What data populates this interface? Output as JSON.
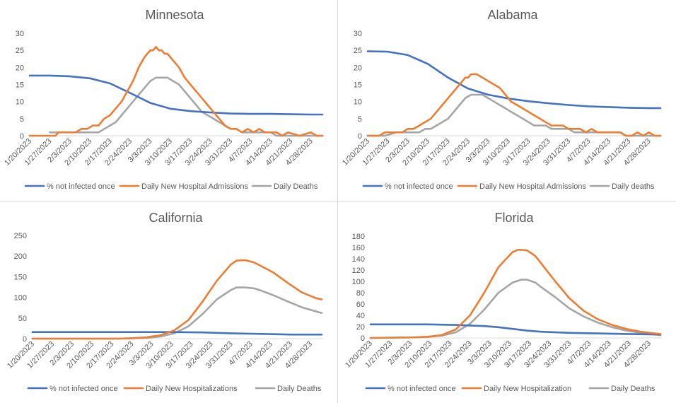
{
  "chart_data": [
    {
      "type": "line",
      "title": "Minnesota",
      "x_start": "1/20/2023",
      "tick_labels": [
        "1/20/2023",
        "1/27/2023",
        "2/3/2023",
        "2/10/2023",
        "2/17/2023",
        "2/24/2023",
        "3/3/2023",
        "3/10/2023",
        "3/17/2023",
        "3/24/2023",
        "3/31/2023",
        "4/7/2023",
        "4/14/2023",
        "4/21/2023",
        "4/28/2023"
      ],
      "ylim": [
        0,
        30
      ],
      "yticks": [
        0,
        5,
        10,
        15,
        20,
        25,
        30
      ],
      "grid": false,
      "legend_position": "bottom",
      "series": [
        {
          "name": "% not infected once",
          "color": "#4472C4",
          "days": [
            0,
            7,
            14,
            21,
            28,
            35,
            42,
            49,
            56,
            63,
            70,
            77,
            84,
            91,
            98,
            102
          ],
          "values": [
            17.6,
            17.6,
            17.4,
            16.8,
            15.3,
            12.5,
            9.6,
            7.9,
            7.2,
            6.8,
            6.5,
            6.4,
            6.4,
            6.3,
            6.2,
            6.2
          ]
        },
        {
          "name": "Daily New Hospital Admissions",
          "color": "#ED7D31",
          "days": [
            0,
            2,
            4,
            6,
            7,
            9,
            10,
            12,
            14,
            16,
            18,
            20,
            22,
            24,
            26,
            28,
            30,
            32,
            34,
            36,
            38,
            40,
            41,
            42,
            43,
            44,
            45,
            46,
            47,
            48,
            50,
            52,
            54,
            56,
            58,
            60,
            62,
            64,
            66,
            68,
            70,
            72,
            74,
            76,
            78,
            80,
            82,
            84,
            86,
            88,
            90,
            94,
            98,
            100,
            102
          ],
          "values": [
            0,
            0,
            0,
            0,
            0,
            0,
            1,
            1,
            1,
            1,
            2,
            2,
            3,
            3,
            5,
            6,
            8,
            10,
            13,
            16,
            20,
            23,
            24,
            25,
            25,
            26,
            25,
            25,
            24,
            24,
            22,
            20,
            17,
            15,
            13,
            11,
            9,
            7,
            5,
            3,
            2,
            2,
            1,
            2,
            1,
            2,
            1,
            1,
            1,
            0,
            1,
            0,
            1,
            0,
            0
          ]
        },
        {
          "name": "Daily Deaths",
          "color": "#A5A5A5",
          "days": [
            7,
            10,
            14,
            18,
            20,
            22,
            24,
            26,
            28,
            30,
            32,
            34,
            36,
            38,
            40,
            42,
            44,
            46,
            48,
            50,
            52,
            54,
            56,
            58,
            60,
            62,
            64,
            66,
            68,
            70,
            72,
            74,
            76,
            78,
            80,
            82,
            84,
            86,
            88,
            90,
            94,
            98,
            102
          ],
          "values": [
            1,
            1,
            1,
            1,
            1,
            1,
            1,
            2,
            3,
            4,
            6,
            8,
            10,
            12,
            14,
            16,
            17,
            17,
            17,
            16,
            15,
            13,
            11,
            9,
            7,
            6,
            5,
            4,
            3,
            2,
            2,
            1,
            1,
            1,
            1,
            1,
            1,
            0,
            0,
            0,
            0,
            0,
            0
          ]
        }
      ]
    },
    {
      "type": "line",
      "title": "Alabama",
      "x_start": "1/20/2023",
      "tick_labels": [
        "1/20/2023",
        "1/27/2023",
        "2/3/2023",
        "2/10/2023",
        "2/17/2023",
        "2/24/2023",
        "3/3/2023",
        "3/10/2023",
        "3/17/2023",
        "3/24/2023",
        "3/31/2023",
        "4/7/2023",
        "4/14/2023",
        "4/21/2023",
        "4/28/2023"
      ],
      "ylim": [
        0,
        30
      ],
      "yticks": [
        0,
        5,
        10,
        15,
        20,
        25,
        30
      ],
      "grid": false,
      "legend_position": "bottom",
      "series": [
        {
          "name": "% not infected once",
          "color": "#4472C4",
          "days": [
            0,
            7,
            14,
            21,
            28,
            35,
            42,
            49,
            56,
            63,
            70,
            77,
            84,
            91,
            98,
            102
          ],
          "values": [
            24.7,
            24.6,
            23.6,
            21.0,
            17.0,
            13.8,
            12.0,
            10.9,
            10.1,
            9.5,
            9.0,
            8.6,
            8.4,
            8.2,
            8.1,
            8.1
          ]
        },
        {
          "name": "Daily New Hospital Admissions",
          "color": "#ED7D31",
          "days": [
            0,
            2,
            4,
            6,
            8,
            10,
            12,
            14,
            16,
            18,
            20,
            22,
            24,
            26,
            28,
            30,
            32,
            34,
            35,
            36,
            37,
            38,
            40,
            42,
            44,
            46,
            48,
            50,
            52,
            54,
            56,
            58,
            60,
            62,
            64,
            66,
            68,
            70,
            72,
            74,
            76,
            78,
            80,
            82,
            84,
            86,
            88,
            90,
            92,
            94,
            96,
            98,
            100,
            102
          ],
          "values": [
            0,
            0,
            0,
            1,
            1,
            1,
            1,
            2,
            2,
            3,
            4,
            5,
            7,
            9,
            11,
            13,
            15,
            17,
            17,
            18,
            18,
            18,
            17,
            16,
            15,
            14,
            12,
            10,
            9,
            8,
            7,
            6,
            5,
            4,
            3,
            3,
            3,
            2,
            2,
            2,
            1,
            2,
            1,
            1,
            1,
            1,
            1,
            0,
            0,
            1,
            0,
            1,
            0,
            0
          ]
        },
        {
          "name": "Daily deaths",
          "color": "#A5A5A5",
          "days": [
            0,
            6,
            10,
            14,
            18,
            20,
            22,
            24,
            26,
            28,
            30,
            32,
            34,
            36,
            38,
            40,
            42,
            44,
            46,
            48,
            50,
            52,
            54,
            56,
            58,
            60,
            62,
            64,
            66,
            68,
            70,
            72,
            74,
            76,
            78,
            80,
            82,
            84,
            86,
            88,
            90,
            92,
            96,
            102
          ],
          "values": [
            0,
            0,
            1,
            1,
            1,
            2,
            2,
            3,
            4,
            5,
            7,
            9,
            11,
            12,
            12,
            12,
            11,
            10,
            9,
            8,
            7,
            6,
            5,
            4,
            3,
            3,
            3,
            2,
            2,
            2,
            2,
            1,
            1,
            1,
            1,
            1,
            1,
            1,
            1,
            1,
            0,
            0,
            0,
            0
          ]
        }
      ]
    },
    {
      "type": "line",
      "title": "California",
      "x_start": "1/20/2023",
      "tick_labels": [
        "1/20/2023",
        "1/27/2023",
        "2/3/2023",
        "2/10/2023",
        "2/17/2023",
        "2/24/2023",
        "3/3/2023",
        "3/10/2023",
        "3/17/2023",
        "3/24/2023",
        "3/31/2023",
        "4/7/2023",
        "4/14/2023",
        "4/21/2023",
        "4/28/2023"
      ],
      "ylim": [
        0,
        250
      ],
      "yticks": [
        0,
        50,
        100,
        150,
        200,
        250
      ],
      "grid": false,
      "legend_position": "bottom",
      "series": [
        {
          "name": "% not infected once",
          "color": "#4472C4",
          "days": [
            0,
            10,
            20,
            30,
            40,
            50,
            60,
            70,
            77,
            84,
            91,
            98,
            102
          ],
          "values": [
            16,
            16,
            16,
            16,
            16,
            16,
            15,
            13,
            12,
            11,
            10,
            10,
            10
          ]
        },
        {
          "name": "Daily New Hospitalizations",
          "color": "#ED7D31",
          "days": [
            0,
            30,
            35,
            40,
            45,
            50,
            55,
            60,
            65,
            70,
            72,
            75,
            78,
            80,
            85,
            90,
            95,
            100,
            102
          ],
          "values": [
            0,
            0,
            1,
            3,
            8,
            20,
            45,
            90,
            140,
            180,
            189,
            190,
            185,
            178,
            160,
            135,
            112,
            98,
            95
          ]
        },
        {
          "name": "Daily Deaths",
          "color": "#A5A5A5",
          "days": [
            0,
            30,
            35,
            40,
            45,
            50,
            55,
            60,
            65,
            70,
            72,
            75,
            78,
            80,
            85,
            90,
            95,
            100,
            102
          ],
          "values": [
            0,
            0,
            1,
            2,
            5,
            13,
            30,
            60,
            95,
            118,
            124,
            124,
            122,
            118,
            105,
            90,
            76,
            66,
            62
          ]
        }
      ]
    },
    {
      "type": "line",
      "title": "Florida",
      "x_start": "1/20/2023",
      "tick_labels": [
        "1/20/2023",
        "1/27/2023",
        "2/3/2023",
        "2/10/2023",
        "2/17/2023",
        "2/24/2023",
        "3/3/2023",
        "3/10/2023",
        "3/17/2023",
        "3/24/2023",
        "3/31/2023",
        "4/7/2023",
        "4/14/2023",
        "4/21/2023",
        "4/28/2023"
      ],
      "ylim": [
        0,
        180
      ],
      "yticks": [
        0,
        20,
        40,
        60,
        80,
        100,
        120,
        140,
        160,
        180
      ],
      "grid": false,
      "legend_position": "bottom",
      "series": [
        {
          "name": "% not infected once",
          "color": "#4472C4",
          "days": [
            0,
            10,
            20,
            30,
            35,
            40,
            45,
            50,
            55,
            60,
            70,
            80,
            90,
            102
          ],
          "values": [
            24,
            24,
            24,
            23,
            22,
            21,
            19,
            16,
            13,
            11,
            9,
            8,
            7,
            6
          ]
        },
        {
          "name": "Daily New Hospitalization",
          "color": "#ED7D31",
          "days": [
            0,
            15,
            20,
            25,
            30,
            35,
            40,
            45,
            50,
            52,
            55,
            58,
            60,
            65,
            70,
            75,
            80,
            85,
            90,
            95,
            100,
            102
          ],
          "values": [
            0,
            1,
            2,
            5,
            15,
            40,
            80,
            125,
            152,
            156,
            155,
            145,
            132,
            100,
            70,
            48,
            33,
            23,
            16,
            11,
            8,
            7
          ]
        },
        {
          "name": "Daily Deaths",
          "color": "#A5A5A5",
          "days": [
            0,
            15,
            20,
            25,
            30,
            35,
            40,
            45,
            50,
            53,
            55,
            58,
            60,
            65,
            70,
            75,
            80,
            85,
            90,
            95,
            100,
            102
          ],
          "values": [
            0,
            1,
            2,
            4,
            10,
            25,
            50,
            80,
            98,
            103,
            103,
            98,
            90,
            72,
            52,
            38,
            27,
            19,
            13,
            9,
            6,
            5
          ]
        }
      ]
    }
  ]
}
